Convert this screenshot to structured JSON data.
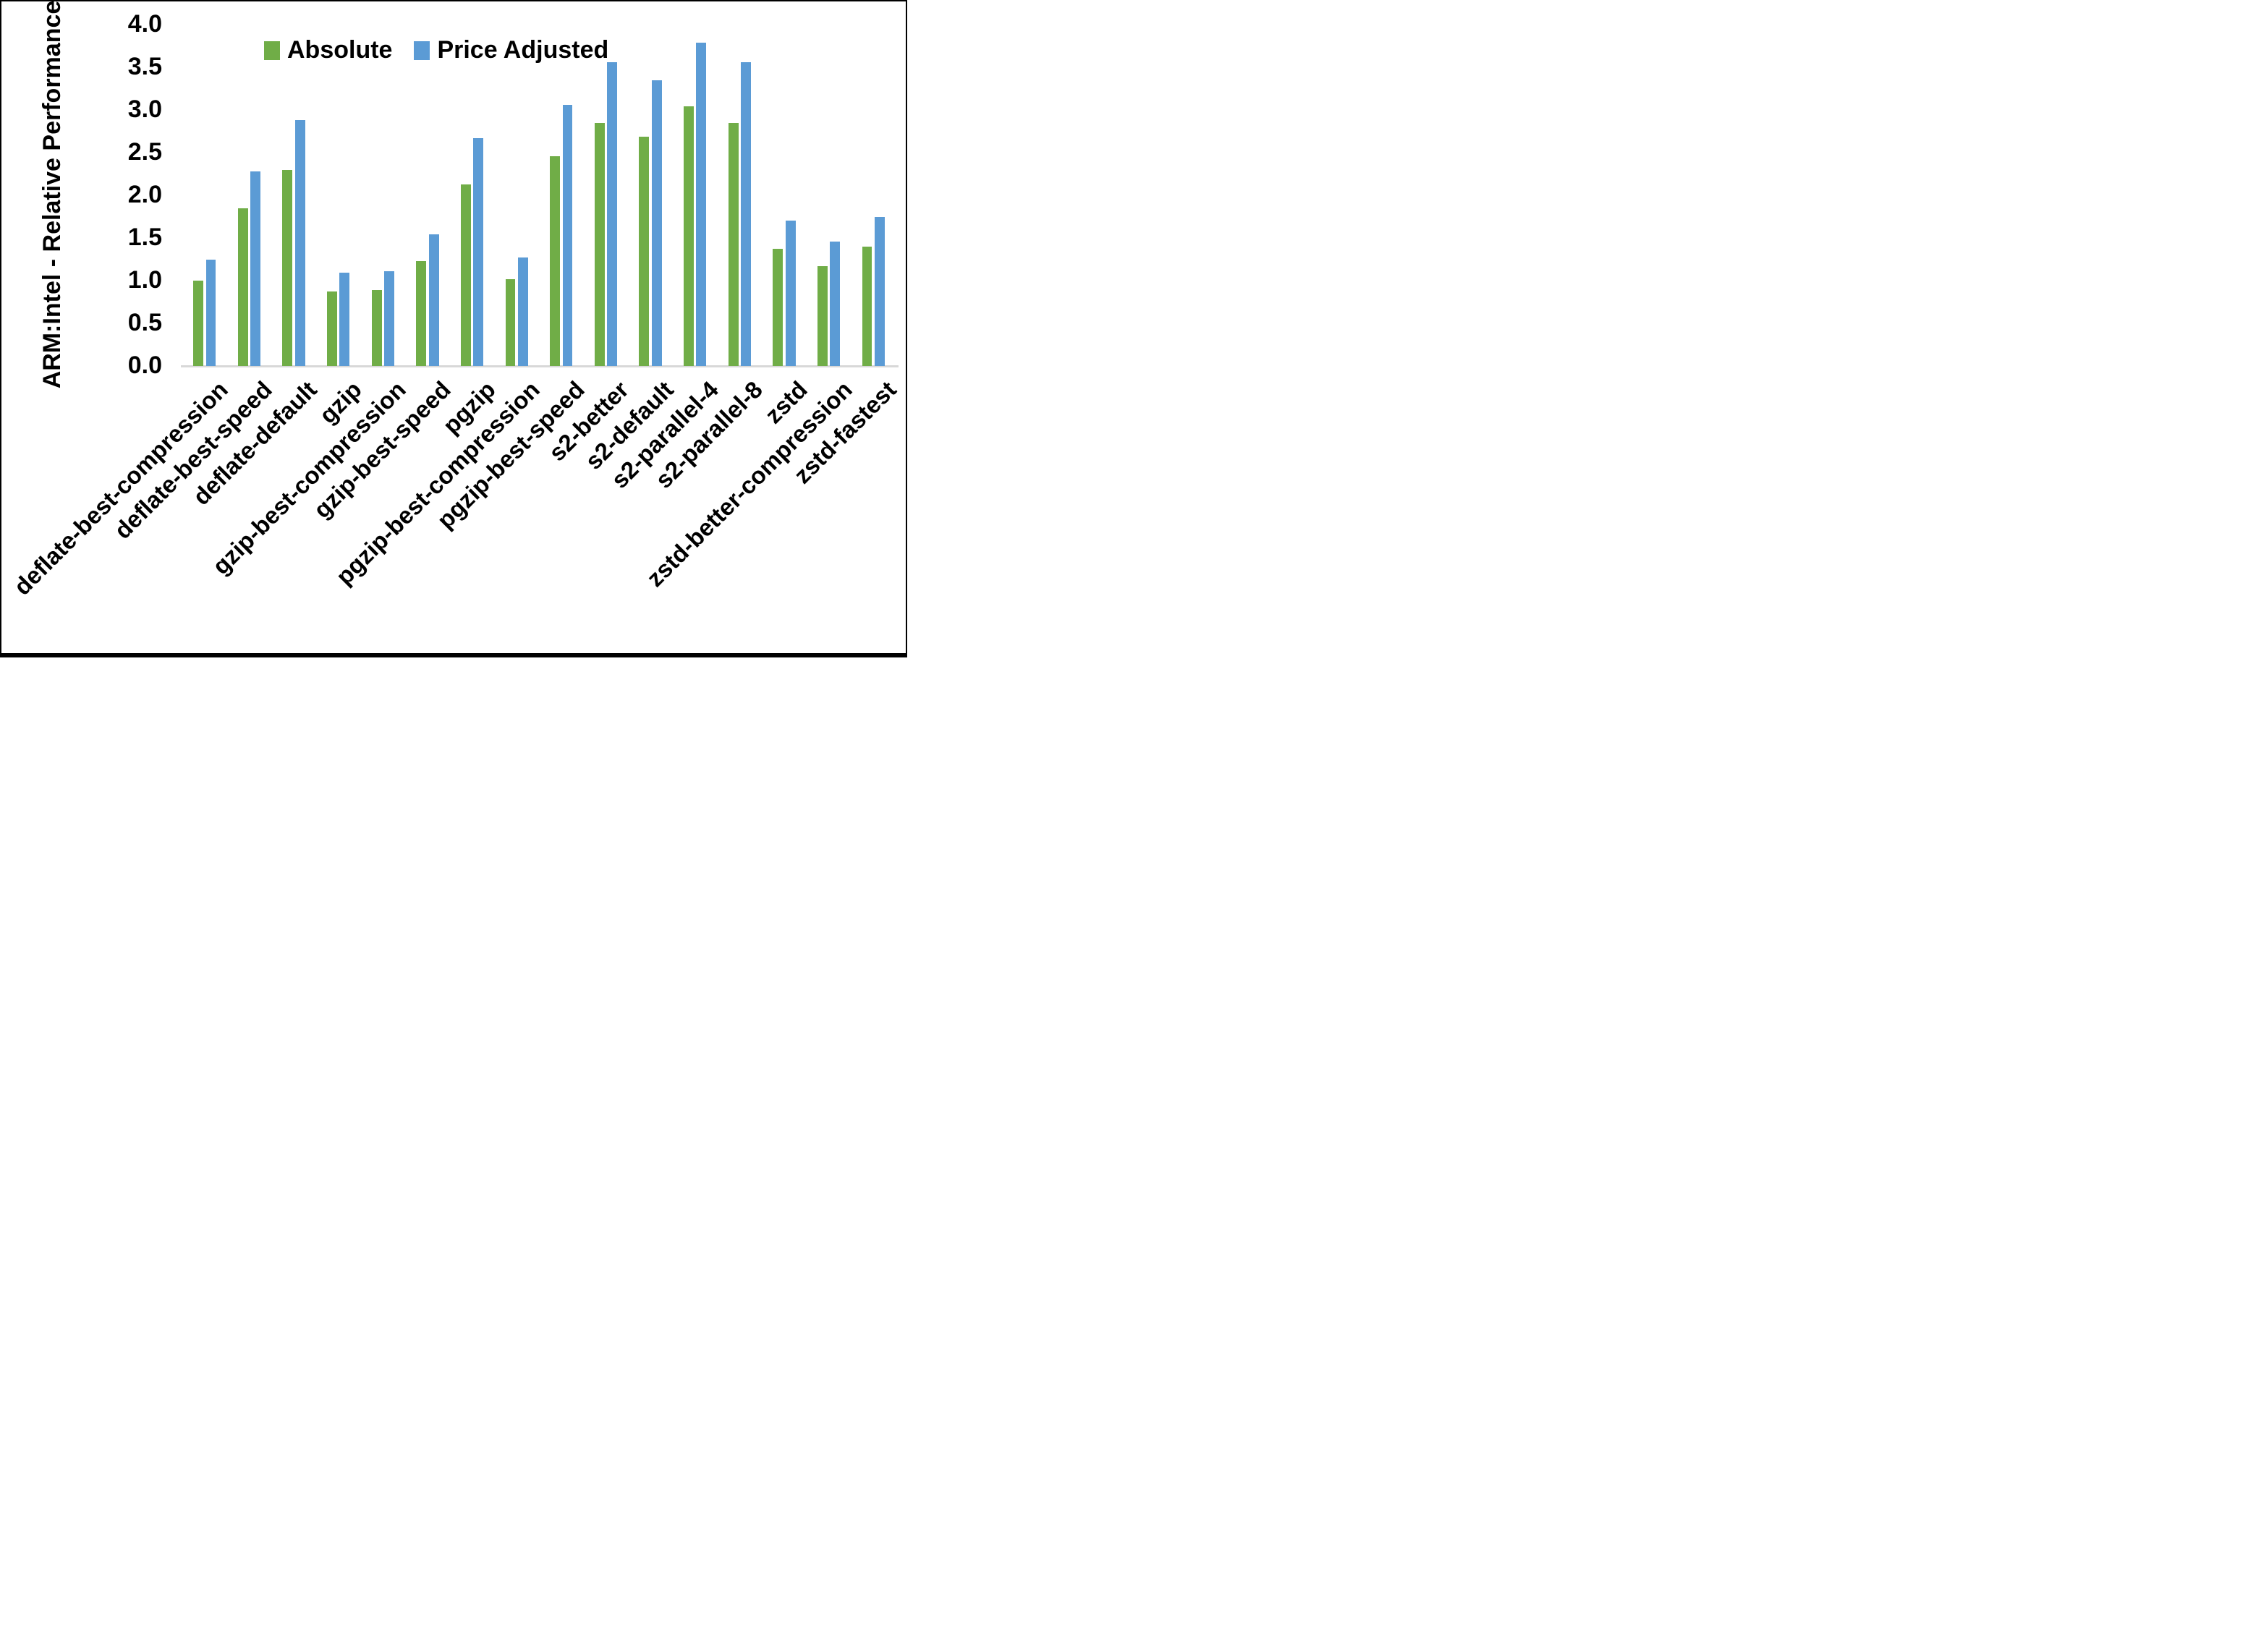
{
  "chart_data": {
    "type": "bar",
    "title": "",
    "xlabel": "",
    "ylabel": "ARM:Intel - Relative Performance",
    "ylim": [
      0.0,
      4.0
    ],
    "ytick_step": 0.5,
    "yticks": [
      "0.0",
      "0.5",
      "1.0",
      "1.5",
      "2.0",
      "2.5",
      "3.0",
      "3.5",
      "4.0"
    ],
    "grid": false,
    "legend_position": "top-center",
    "categories": [
      "deflate-best-compression",
      "deflate-best-speed",
      "deflate-default",
      "gzip",
      "gzip-best-compression",
      "gzip-best-speed",
      "pgzip",
      "pgzip-best-compression",
      "pgzip-best-speed",
      "s2-better",
      "s2-default",
      "s2-parallel-4",
      "s2-parallel-8",
      "zstd",
      "zstd-better-compression",
      "zstd-fastest"
    ],
    "series": [
      {
        "name": "Absolute",
        "color": "#70AD47",
        "values": [
          1.0,
          1.85,
          2.3,
          0.87,
          0.89,
          1.23,
          2.13,
          1.02,
          2.46,
          2.85,
          2.69,
          3.04,
          2.85,
          1.37,
          1.17,
          1.4
        ]
      },
      {
        "name": "Price Adjusted",
        "color": "#5B9BD5",
        "values": [
          1.25,
          2.28,
          2.88,
          1.09,
          1.11,
          1.54,
          2.67,
          1.27,
          3.06,
          3.56,
          3.35,
          3.79,
          3.56,
          1.7,
          1.46,
          1.75
        ]
      }
    ]
  },
  "colors": {
    "axis_line": "#D8D8D8",
    "text": "#000000",
    "background": "#FFFFFF",
    "border": "#000000"
  }
}
